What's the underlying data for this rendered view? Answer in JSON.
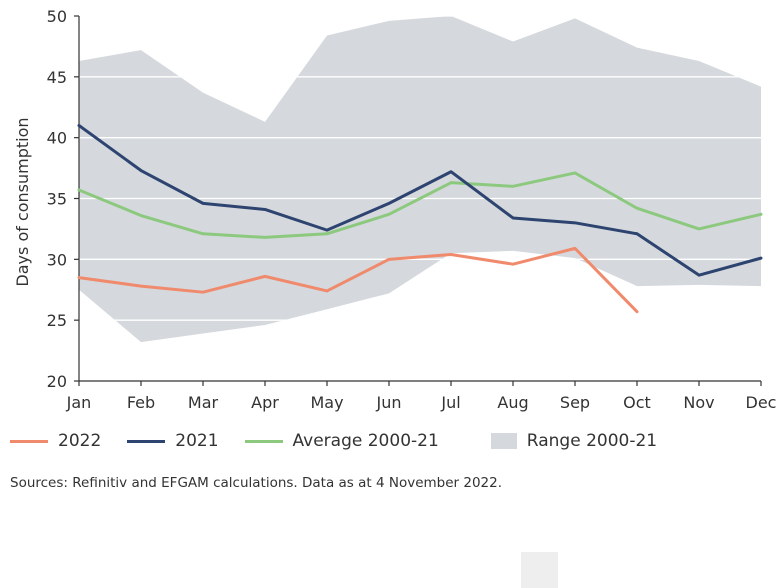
{
  "chart_data": {
    "type": "line",
    "title": "",
    "xlabel": "",
    "ylabel": "Days of consumption",
    "ylim": [
      20,
      50
    ],
    "yticks": [
      20,
      25,
      30,
      35,
      40,
      45,
      50
    ],
    "categories": [
      "Jan",
      "Feb",
      "Mar",
      "Apr",
      "May",
      "Jun",
      "Jul",
      "Aug",
      "Sep",
      "Oct",
      "Nov",
      "Dec"
    ],
    "grid": "horizontal",
    "legend_position": "bottom",
    "range": {
      "name": "Range 2000-21",
      "color": "#d5d9dd",
      "high": [
        46.3,
        47.2,
        43.7,
        41.3,
        48.4,
        49.6,
        50.0,
        47.9,
        49.8,
        47.4,
        46.3,
        44.2
      ],
      "low": [
        27.5,
        23.2,
        23.9,
        24.6,
        25.9,
        27.2,
        30.5,
        30.7,
        30.1,
        27.8,
        27.9,
        27.8
      ]
    },
    "series": [
      {
        "name": "2022",
        "color": "#f08a6c",
        "values": [
          28.5,
          27.8,
          27.3,
          28.6,
          27.4,
          30.0,
          30.4,
          29.6,
          30.9,
          25.7,
          null,
          null
        ]
      },
      {
        "name": "2021",
        "color": "#2e4470",
        "values": [
          41.0,
          37.3,
          34.6,
          34.1,
          32.4,
          34.6,
          37.2,
          33.4,
          33.0,
          32.1,
          28.7,
          30.1
        ]
      },
      {
        "name": "Average 2000-21",
        "color": "#8cc97f",
        "values": [
          35.7,
          33.6,
          32.1,
          31.8,
          32.1,
          33.7,
          36.3,
          36.0,
          37.1,
          34.2,
          32.5,
          33.7
        ]
      }
    ]
  },
  "source": "Sources: Refinitiv and EFGAM calculations. Data as at 4 November 2022."
}
